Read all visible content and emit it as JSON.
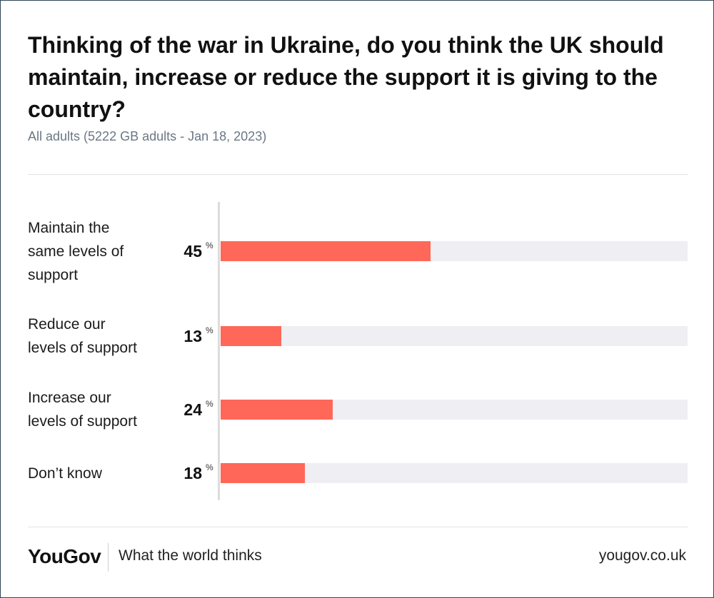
{
  "chart_data": {
    "type": "bar",
    "orientation": "horizontal",
    "title": "Thinking of the war in Ukraine, do you think the UK should maintain, increase or reduce the support it is giving to the country?",
    "subtitle": "All adults (5222 GB adults - Jan 18, 2023)",
    "categories": [
      [
        "Maintain the",
        "same levels of",
        "support"
      ],
      [
        "Reduce our",
        "levels of support"
      ],
      [
        "Increase our",
        "levels of support"
      ],
      [
        "Don’t know"
      ]
    ],
    "values": [
      45,
      13,
      24,
      18
    ],
    "unit": "%",
    "xlim": [
      0,
      100
    ],
    "colors": {
      "bar": "#ff6759",
      "track": "#efeff3"
    }
  },
  "footer": {
    "brand": "YouGov",
    "tagline": "What the world thinks",
    "url": "yougov.co.uk"
  }
}
